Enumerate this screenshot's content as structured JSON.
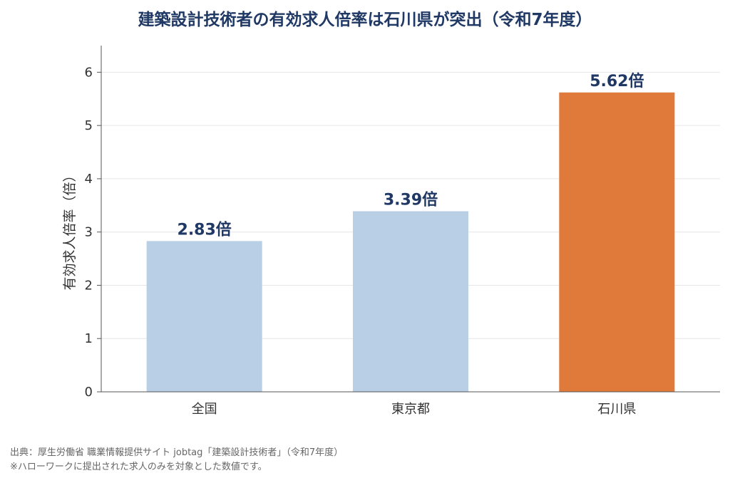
{
  "chart_data": {
    "type": "bar",
    "title": "建築設計技術者の有効求人倍率は石川県が突出（令和7年度）",
    "ylabel": "有効求人倍率（倍）",
    "xlabel": "",
    "categories": [
      "全国",
      "東京都",
      "石川県"
    ],
    "values": [
      2.83,
      3.39,
      5.62
    ],
    "data_labels": [
      "2.83倍",
      "3.39倍",
      "5.62倍"
    ],
    "colors": [
      "#b8cfe6",
      "#b8cfe6",
      "#e07a3a"
    ],
    "label_color": "#1f3864",
    "ylim": [
      0,
      6.5
    ],
    "yticks": [
      0,
      1,
      2,
      3,
      4,
      5,
      6
    ],
    "grid": true
  },
  "footer": {
    "source": "出典：厚生労働省 職業情報提供サイト jobtag「建築設計技術者」（令和7年度）",
    "note": "※ハローワークに提出された求人のみを対象とした数値です。"
  }
}
